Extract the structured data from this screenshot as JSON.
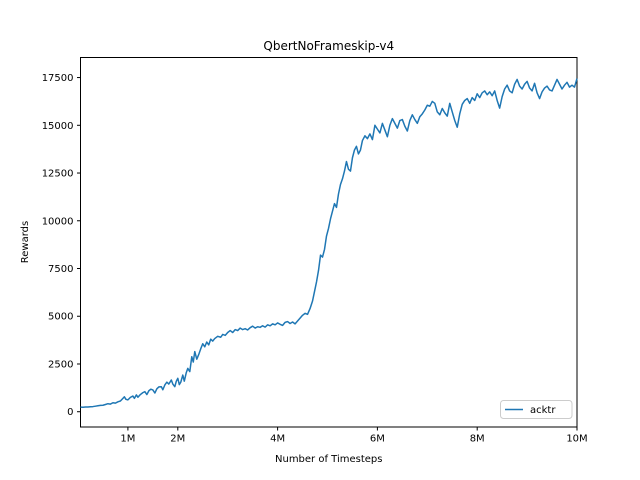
{
  "figure": {
    "background": "#ffffff",
    "title": "QbertNoFrameskip-v4"
  },
  "colors": {
    "line": "#1f77b4",
    "spine": "#000000",
    "text": "#000000",
    "legend_border": "#cccccc",
    "legend_background": "#ffffff"
  },
  "chart_data": {
    "type": "line",
    "title": "QbertNoFrameskip-v4",
    "xlabel": "Number of Timesteps",
    "ylabel": "Rewards",
    "xlim": [
      0.05,
      10.0
    ],
    "ylim": [
      -800,
      18550
    ],
    "grid": false,
    "x_ticks": [
      {
        "value": 1,
        "label": "1M"
      },
      {
        "value": 2,
        "label": "2M"
      },
      {
        "value": 4,
        "label": "4M"
      },
      {
        "value": 6,
        "label": "6M"
      },
      {
        "value": 8,
        "label": "8M"
      },
      {
        "value": 10,
        "label": "10M"
      }
    ],
    "y_ticks": [
      {
        "value": 0,
        "label": "0"
      },
      {
        "value": 2500,
        "label": "2500"
      },
      {
        "value": 5000,
        "label": "5000"
      },
      {
        "value": 7500,
        "label": "7500"
      },
      {
        "value": 10000,
        "label": "10000"
      },
      {
        "value": 12500,
        "label": "12500"
      },
      {
        "value": 15000,
        "label": "15000"
      },
      {
        "value": 17500,
        "label": "17500"
      }
    ],
    "legend": {
      "position": "lower right",
      "entries": [
        {
          "label": "acktr",
          "color": "#1f77b4"
        }
      ]
    },
    "series": [
      {
        "name": "acktr",
        "color": "#1f77b4",
        "x_unit": "millions of timesteps",
        "points": [
          [
            0.05,
            240
          ],
          [
            0.1,
            235
          ],
          [
            0.15,
            250
          ],
          [
            0.2,
            245
          ],
          [
            0.25,
            260
          ],
          [
            0.3,
            270
          ],
          [
            0.35,
            290
          ],
          [
            0.4,
            310
          ],
          [
            0.45,
            330
          ],
          [
            0.5,
            340
          ],
          [
            0.55,
            380
          ],
          [
            0.6,
            420
          ],
          [
            0.65,
            400
          ],
          [
            0.7,
            470
          ],
          [
            0.75,
            450
          ],
          [
            0.8,
            520
          ],
          [
            0.85,
            560
          ],
          [
            0.9,
            700
          ],
          [
            0.93,
            780
          ],
          [
            0.96,
            650
          ],
          [
            1.0,
            620
          ],
          [
            1.05,
            750
          ],
          [
            1.1,
            820
          ],
          [
            1.13,
            700
          ],
          [
            1.17,
            880
          ],
          [
            1.2,
            760
          ],
          [
            1.25,
            900
          ],
          [
            1.3,
            1000
          ],
          [
            1.34,
            1050
          ],
          [
            1.38,
            900
          ],
          [
            1.42,
            1100
          ],
          [
            1.46,
            1180
          ],
          [
            1.5,
            1140
          ],
          [
            1.54,
            980
          ],
          [
            1.58,
            1200
          ],
          [
            1.62,
            1300
          ],
          [
            1.67,
            1310
          ],
          [
            1.7,
            1150
          ],
          [
            1.74,
            1400
          ],
          [
            1.78,
            1550
          ],
          [
            1.82,
            1450
          ],
          [
            1.87,
            1660
          ],
          [
            1.9,
            1450
          ],
          [
            1.94,
            1310
          ],
          [
            1.97,
            1600
          ],
          [
            2.0,
            1750
          ],
          [
            2.03,
            1420
          ],
          [
            2.06,
            1550
          ],
          [
            2.1,
            1920
          ],
          [
            2.13,
            1600
          ],
          [
            2.17,
            2050
          ],
          [
            2.2,
            2270
          ],
          [
            2.24,
            2100
          ],
          [
            2.28,
            2880
          ],
          [
            2.31,
            2600
          ],
          [
            2.34,
            3150
          ],
          [
            2.38,
            2750
          ],
          [
            2.42,
            3000
          ],
          [
            2.46,
            3300
          ],
          [
            2.5,
            3560
          ],
          [
            2.54,
            3400
          ],
          [
            2.58,
            3650
          ],
          [
            2.62,
            3500
          ],
          [
            2.66,
            3800
          ],
          [
            2.7,
            3700
          ],
          [
            2.74,
            3830
          ],
          [
            2.8,
            3950
          ],
          [
            2.86,
            3900
          ],
          [
            2.9,
            4050
          ],
          [
            2.95,
            4000
          ],
          [
            3.0,
            4150
          ],
          [
            3.05,
            4250
          ],
          [
            3.1,
            4150
          ],
          [
            3.15,
            4300
          ],
          [
            3.2,
            4250
          ],
          [
            3.25,
            4380
          ],
          [
            3.3,
            4300
          ],
          [
            3.35,
            4350
          ],
          [
            3.4,
            4280
          ],
          [
            3.45,
            4400
          ],
          [
            3.5,
            4480
          ],
          [
            3.55,
            4380
          ],
          [
            3.6,
            4450
          ],
          [
            3.65,
            4420
          ],
          [
            3.7,
            4500
          ],
          [
            3.75,
            4430
          ],
          [
            3.8,
            4550
          ],
          [
            3.85,
            4500
          ],
          [
            3.9,
            4600
          ],
          [
            3.95,
            4550
          ],
          [
            4.0,
            4650
          ],
          [
            4.05,
            4580
          ],
          [
            4.1,
            4520
          ],
          [
            4.15,
            4680
          ],
          [
            4.2,
            4720
          ],
          [
            4.25,
            4620
          ],
          [
            4.3,
            4700
          ],
          [
            4.35,
            4600
          ],
          [
            4.4,
            4750
          ],
          [
            4.45,
            4900
          ],
          [
            4.5,
            5050
          ],
          [
            4.55,
            5150
          ],
          [
            4.6,
            5100
          ],
          [
            4.65,
            5400
          ],
          [
            4.7,
            5800
          ],
          [
            4.74,
            6300
          ],
          [
            4.78,
            6800
          ],
          [
            4.82,
            7400
          ],
          [
            4.86,
            8200
          ],
          [
            4.9,
            8100
          ],
          [
            4.94,
            8500
          ],
          [
            4.98,
            9200
          ],
          [
            5.02,
            9600
          ],
          [
            5.06,
            10100
          ],
          [
            5.1,
            10500
          ],
          [
            5.14,
            10900
          ],
          [
            5.18,
            10700
          ],
          [
            5.22,
            11400
          ],
          [
            5.26,
            11900
          ],
          [
            5.3,
            12200
          ],
          [
            5.34,
            12600
          ],
          [
            5.38,
            13100
          ],
          [
            5.42,
            12700
          ],
          [
            5.46,
            12600
          ],
          [
            5.5,
            13300
          ],
          [
            5.54,
            13700
          ],
          [
            5.58,
            13900
          ],
          [
            5.62,
            13500
          ],
          [
            5.66,
            13700
          ],
          [
            5.7,
            14200
          ],
          [
            5.75,
            14450
          ],
          [
            5.8,
            14300
          ],
          [
            5.85,
            14550
          ],
          [
            5.9,
            14250
          ],
          [
            5.95,
            15000
          ],
          [
            6.0,
            14800
          ],
          [
            6.05,
            14600
          ],
          [
            6.1,
            15100
          ],
          [
            6.15,
            14750
          ],
          [
            6.2,
            14400
          ],
          [
            6.25,
            15000
          ],
          [
            6.3,
            15350
          ],
          [
            6.35,
            15100
          ],
          [
            6.4,
            14850
          ],
          [
            6.45,
            15250
          ],
          [
            6.5,
            15300
          ],
          [
            6.55,
            14950
          ],
          [
            6.6,
            14700
          ],
          [
            6.65,
            15250
          ],
          [
            6.7,
            15550
          ],
          [
            6.75,
            15300
          ],
          [
            6.8,
            15100
          ],
          [
            6.85,
            15450
          ],
          [
            6.9,
            15600
          ],
          [
            6.95,
            15800
          ],
          [
            7.0,
            16050
          ],
          [
            7.05,
            16000
          ],
          [
            7.1,
            16250
          ],
          [
            7.15,
            16150
          ],
          [
            7.2,
            15700
          ],
          [
            7.25,
            15550
          ],
          [
            7.3,
            15880
          ],
          [
            7.35,
            15650
          ],
          [
            7.4,
            15480
          ],
          [
            7.45,
            16150
          ],
          [
            7.5,
            15700
          ],
          [
            7.55,
            15250
          ],
          [
            7.6,
            14900
          ],
          [
            7.65,
            15600
          ],
          [
            7.7,
            16100
          ],
          [
            7.75,
            16300
          ],
          [
            7.8,
            16400
          ],
          [
            7.85,
            16150
          ],
          [
            7.9,
            16450
          ],
          [
            7.95,
            16300
          ],
          [
            8.0,
            16650
          ],
          [
            8.05,
            16450
          ],
          [
            8.1,
            16700
          ],
          [
            8.15,
            16800
          ],
          [
            8.2,
            16600
          ],
          [
            8.25,
            16750
          ],
          [
            8.3,
            16550
          ],
          [
            8.35,
            16800
          ],
          [
            8.4,
            16300
          ],
          [
            8.45,
            15900
          ],
          [
            8.5,
            16500
          ],
          [
            8.55,
            16900
          ],
          [
            8.6,
            17100
          ],
          [
            8.65,
            16800
          ],
          [
            8.7,
            16700
          ],
          [
            8.75,
            17150
          ],
          [
            8.8,
            17400
          ],
          [
            8.85,
            17050
          ],
          [
            8.9,
            16900
          ],
          [
            8.95,
            17150
          ],
          [
            9.0,
            17300
          ],
          [
            9.05,
            16950
          ],
          [
            9.1,
            16800
          ],
          [
            9.15,
            17200
          ],
          [
            9.2,
            16700
          ],
          [
            9.25,
            16400
          ],
          [
            9.3,
            16750
          ],
          [
            9.35,
            16950
          ],
          [
            9.4,
            17050
          ],
          [
            9.45,
            16850
          ],
          [
            9.5,
            16800
          ],
          [
            9.55,
            17100
          ],
          [
            9.6,
            17400
          ],
          [
            9.65,
            17150
          ],
          [
            9.7,
            16900
          ],
          [
            9.75,
            17100
          ],
          [
            9.8,
            17250
          ],
          [
            9.85,
            17000
          ],
          [
            9.9,
            17100
          ],
          [
            9.95,
            17000
          ],
          [
            10.0,
            17450
          ]
        ]
      }
    ]
  }
}
